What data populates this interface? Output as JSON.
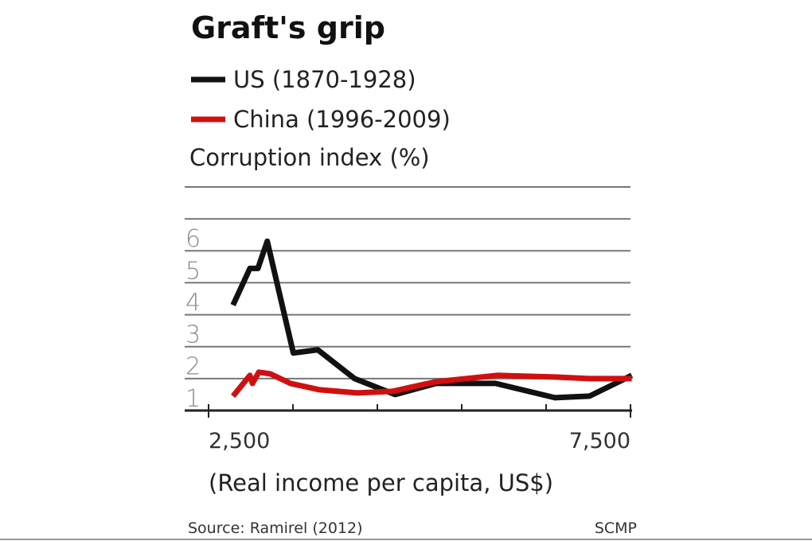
{
  "chart_data": {
    "type": "line",
    "title": "Graft's grip",
    "ylabel": "Corruption index (%)",
    "xlabel": "(Real income per capita, US$)",
    "xlim": [
      2500,
      7500
    ],
    "ylim": [
      0,
      6
    ],
    "x_ticks": [
      2500,
      3500,
      4500,
      5500,
      6500,
      7500
    ],
    "x_tick_labels": [
      "2,500",
      "",
      "",
      "",
      "",
      "7,500"
    ],
    "y_ticks": [
      1,
      2,
      3,
      4,
      5,
      6
    ],
    "y_tick_labels": [
      "1",
      "2",
      "3",
      "4",
      "5",
      "6"
    ],
    "grid": true,
    "legend_position": "top-left",
    "series": [
      {
        "name": "US (1870-1928)",
        "color": "#111111",
        "x": [
          2790,
          2990,
          3085,
          3195,
          3505,
          3795,
          4230,
          4710,
          5195,
          5900,
          6605,
          7015,
          7515
        ],
        "y": [
          3.3,
          4.45,
          4.45,
          5.3,
          1.8,
          1.9,
          1.0,
          0.5,
          0.85,
          0.85,
          0.4,
          0.45,
          1.1
        ]
      },
      {
        "name": "China (1996-2009)",
        "color": "#d01010",
        "x": [
          2790,
          2990,
          3020,
          3095,
          3230,
          3470,
          3815,
          4260,
          4675,
          5190,
          5920,
          6605,
          7015,
          7515
        ],
        "y": [
          0.45,
          1.1,
          0.85,
          1.2,
          1.15,
          0.85,
          0.65,
          0.55,
          0.6,
          0.9,
          1.1,
          1.05,
          1.0,
          1.0
        ]
      }
    ]
  },
  "source": "Source: Ramirel (2012)",
  "credit": "SCMP"
}
